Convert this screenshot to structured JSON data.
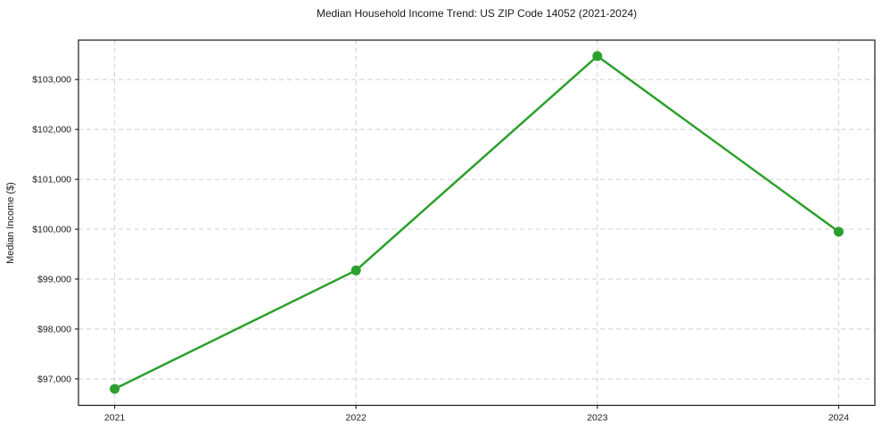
{
  "figure": {
    "background": "#ffffff"
  },
  "chart_data": {
    "type": "line",
    "title": "Median Household Income Trend: US ZIP Code 14052 (2021-2024)",
    "xlabel": "",
    "ylabel": "Median Income ($)",
    "categories": [
      "2021",
      "2022",
      "2023",
      "2024"
    ],
    "series": [
      {
        "name": "Median household income",
        "values": [
          96800,
          99175,
          103470,
          99950
        ],
        "color": "#2ca02c",
        "marker": "circle"
      }
    ],
    "ylim": [
      96470,
      103790
    ],
    "yticks": {
      "values": [
        97000,
        98000,
        99000,
        100000,
        101000,
        102000,
        103000
      ],
      "labels": [
        "$97,000",
        "$98,000",
        "$99,000",
        "$100,000",
        "$101,000",
        "$102,000",
        "$103,000"
      ]
    },
    "grid": {
      "visible": true,
      "style": "dashed",
      "color": "#d0d0d0"
    },
    "legend": "none",
    "axis_color": "#1a1a1a",
    "text_color": "#1a1a1a"
  }
}
